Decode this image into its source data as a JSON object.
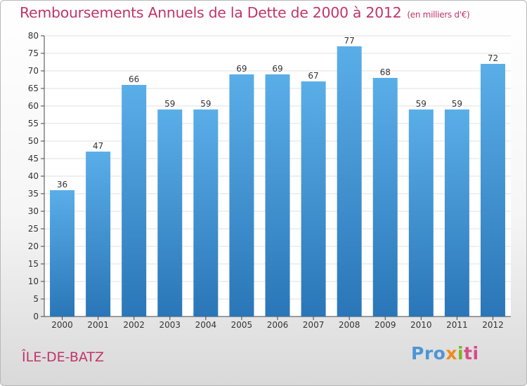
{
  "title": "Remboursements Annuels de la Dette de 2000 à 2012",
  "unit": "(en milliers d'€)",
  "commune": "ÎLE-DE-BATZ",
  "logo": {
    "text": "Proxiti"
  },
  "colors": {
    "bar_top": "#5aaee8",
    "bar_bottom": "#2a76b8",
    "title": "#c0356a",
    "grid": "#e2e2e2"
  },
  "chart_data": {
    "type": "bar",
    "title": "Remboursements Annuels de la Dette de 2000 à 2012",
    "categories": [
      "2000",
      "2001",
      "2002",
      "2003",
      "2004",
      "2005",
      "2006",
      "2007",
      "2008",
      "2009",
      "2010",
      "2011",
      "2012"
    ],
    "values": [
      36,
      47,
      66,
      59,
      59,
      69,
      69,
      67,
      77,
      68,
      59,
      59,
      72
    ],
    "ylim": [
      0,
      80
    ],
    "yticks": [
      0,
      5,
      10,
      15,
      20,
      25,
      30,
      35,
      40,
      45,
      50,
      55,
      60,
      65,
      70,
      75,
      80
    ],
    "grid": true,
    "data_labels": true
  }
}
